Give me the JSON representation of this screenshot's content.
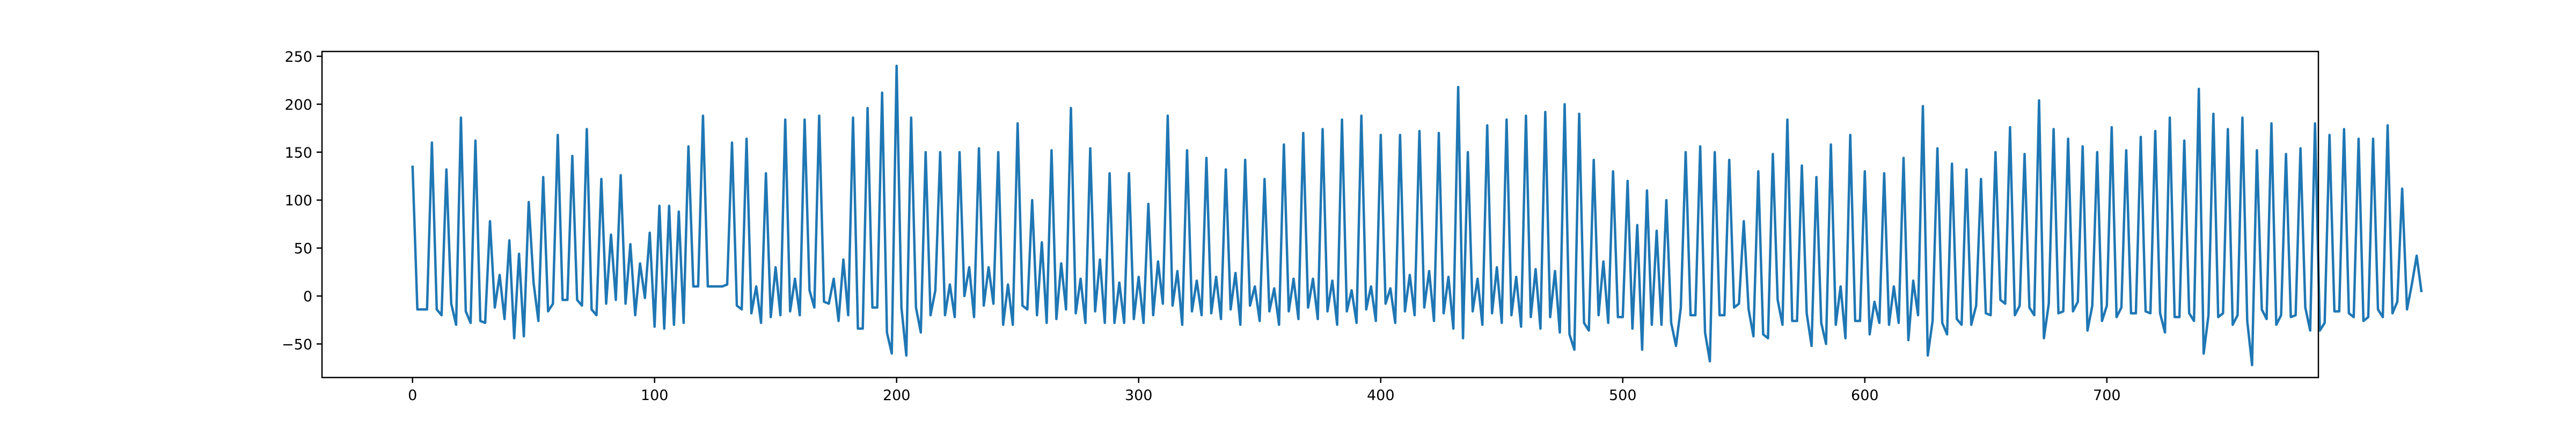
{
  "chart_data": {
    "type": "line",
    "title": "",
    "xlabel": "",
    "ylabel": "",
    "xlim": [
      -37.4,
      787.4
    ],
    "ylim": [
      -85,
      255
    ],
    "x_ticks": [
      0,
      100,
      200,
      300,
      400,
      500,
      600,
      700
    ],
    "y_ticks": [
      -50,
      0,
      50,
      100,
      150,
      200,
      250
    ],
    "grid": false,
    "line_color": "#1f77b4",
    "series": [
      {
        "sample_every": 2,
        "values": [
          136,
          -14,
          -14,
          -14,
          160,
          -14,
          -20,
          132,
          -8,
          -30,
          186,
          -16,
          -28,
          162,
          -26,
          -28,
          78,
          -12,
          22,
          -24,
          58,
          -44,
          44,
          -42,
          98,
          14,
          -26,
          124,
          -16,
          -8,
          168,
          -4,
          -4,
          146,
          -4,
          -10,
          174,
          -14,
          -20,
          122,
          -8,
          64,
          -4,
          126,
          -8,
          54,
          -20,
          34,
          -2,
          66,
          -32,
          94,
          -34,
          94,
          -30,
          88,
          -28,
          156,
          10,
          10,
          188,
          10,
          10,
          10,
          10,
          12,
          160,
          -10,
          -14,
          164,
          -18,
          10,
          -28,
          128,
          -22,
          30,
          -20,
          184,
          -16,
          18,
          -20,
          184,
          6,
          -12,
          188,
          -6,
          -8,
          18,
          -26,
          38,
          -20,
          186,
          -34,
          -34,
          196,
          -12,
          -12,
          212,
          -38,
          -60,
          240,
          -12,
          -62,
          186,
          -12,
          -38,
          150,
          -20,
          6,
          150,
          -20,
          12,
          -22,
          150,
          0,
          30,
          -22,
          154,
          -10,
          30,
          -8,
          150,
          -30,
          12,
          -30,
          180,
          -10,
          -14,
          100,
          -20,
          56,
          -28,
          152,
          -24,
          34,
          -14,
          196,
          -18,
          18,
          -28,
          154,
          -16,
          38,
          -28,
          128,
          -28,
          14,
          -28,
          128,
          -24,
          20,
          -28,
          96,
          -20,
          36,
          -8,
          188,
          -10,
          26,
          -30,
          152,
          -16,
          16,
          -20,
          144,
          -18,
          20,
          -24,
          132,
          -14,
          24,
          -30,
          142,
          -10,
          10,
          -26,
          122,
          -16,
          8,
          -30,
          158,
          -16,
          18,
          -24,
          170,
          -12,
          18,
          -24,
          174,
          -16,
          16,
          -30,
          184,
          -16,
          6,
          -28,
          188,
          -14,
          10,
          -26,
          168,
          -8,
          8,
          -28,
          168,
          -16,
          22,
          -20,
          172,
          -12,
          26,
          -26,
          170,
          -18,
          20,
          -34,
          218,
          -44,
          150,
          -16,
          18,
          -30,
          178,
          -18,
          30,
          -28,
          184,
          -20,
          20,
          -32,
          188,
          -22,
          28,
          -34,
          192,
          -22,
          26,
          -38,
          200,
          -40,
          -56,
          190,
          -28,
          -36,
          142,
          -20,
          36,
          -28,
          130,
          -22,
          -22,
          120,
          -34,
          74,
          -56,
          110,
          -30,
          68,
          -30,
          100,
          -28,
          -52,
          -12,
          150,
          -20,
          -20,
          156,
          -38,
          -68,
          150,
          -20,
          -20,
          142,
          -12,
          -8,
          78,
          -14,
          -42,
          130,
          -40,
          -44,
          148,
          -4,
          -30,
          184,
          -26,
          -26,
          136,
          -18,
          -52,
          124,
          -28,
          -50,
          158,
          -30,
          10,
          -44,
          168,
          -26,
          -26,
          130,
          -40,
          -6,
          -28,
          128,
          -30,
          10,
          -28,
          144,
          -46,
          16,
          -20,
          198,
          -62,
          -26,
          154,
          -28,
          -40,
          138,
          -24,
          -30,
          132,
          -30,
          -10,
          122,
          -18,
          -20,
          150,
          -4,
          -8,
          176,
          -20,
          -10,
          148,
          -12,
          -20,
          204,
          -44,
          -8,
          174,
          -18,
          -16,
          164,
          -16,
          -6,
          156,
          -36,
          -10,
          150,
          -26,
          -10,
          176,
          -22,
          -12,
          152,
          -18,
          -18,
          166,
          -16,
          -18,
          172,
          -18,
          -38,
          186,
          -22,
          -22,
          162,
          -18,
          -26,
          216,
          -60,
          -20,
          190,
          -22,
          -18,
          174,
          -30,
          -20,
          186,
          -26,
          -72,
          152,
          -14,
          -24,
          180,
          -30,
          -20,
          148,
          -22,
          -20,
          154,
          -12,
          -36,
          180,
          -36,
          -28,
          168,
          -16,
          -16,
          174,
          -18,
          -22,
          164,
          -26,
          -22,
          164,
          -14,
          -22,
          178,
          -18,
          -6,
          112,
          -14,
          12,
          42,
          4
        ]
      }
    ]
  }
}
